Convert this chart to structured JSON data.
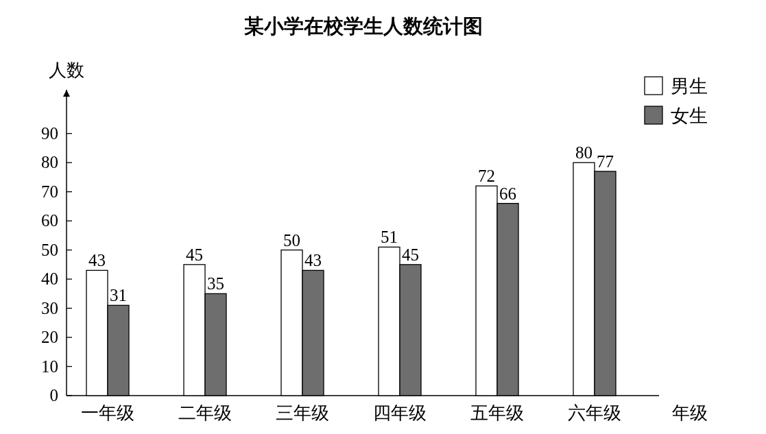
{
  "chart_data": {
    "type": "bar",
    "title": "某小学在校学生人数统计图",
    "ylabel": "人数",
    "xlabel": "年级",
    "categories": [
      "一年级",
      "二年级",
      "三年级",
      "四年级",
      "五年级",
      "六年级"
    ],
    "series": [
      {
        "name": "男生",
        "color": "#ffffff",
        "values": [
          43,
          45,
          50,
          51,
          72,
          80
        ]
      },
      {
        "name": "女生",
        "color": "#6e6e6e",
        "values": [
          31,
          35,
          43,
          45,
          66,
          77
        ]
      }
    ],
    "ylim": [
      0,
      105
    ],
    "yticks": [
      0,
      10,
      20,
      30,
      40,
      50,
      60,
      70,
      80,
      90
    ],
    "data_labels": true,
    "legend": "top right",
    "grid": false
  }
}
